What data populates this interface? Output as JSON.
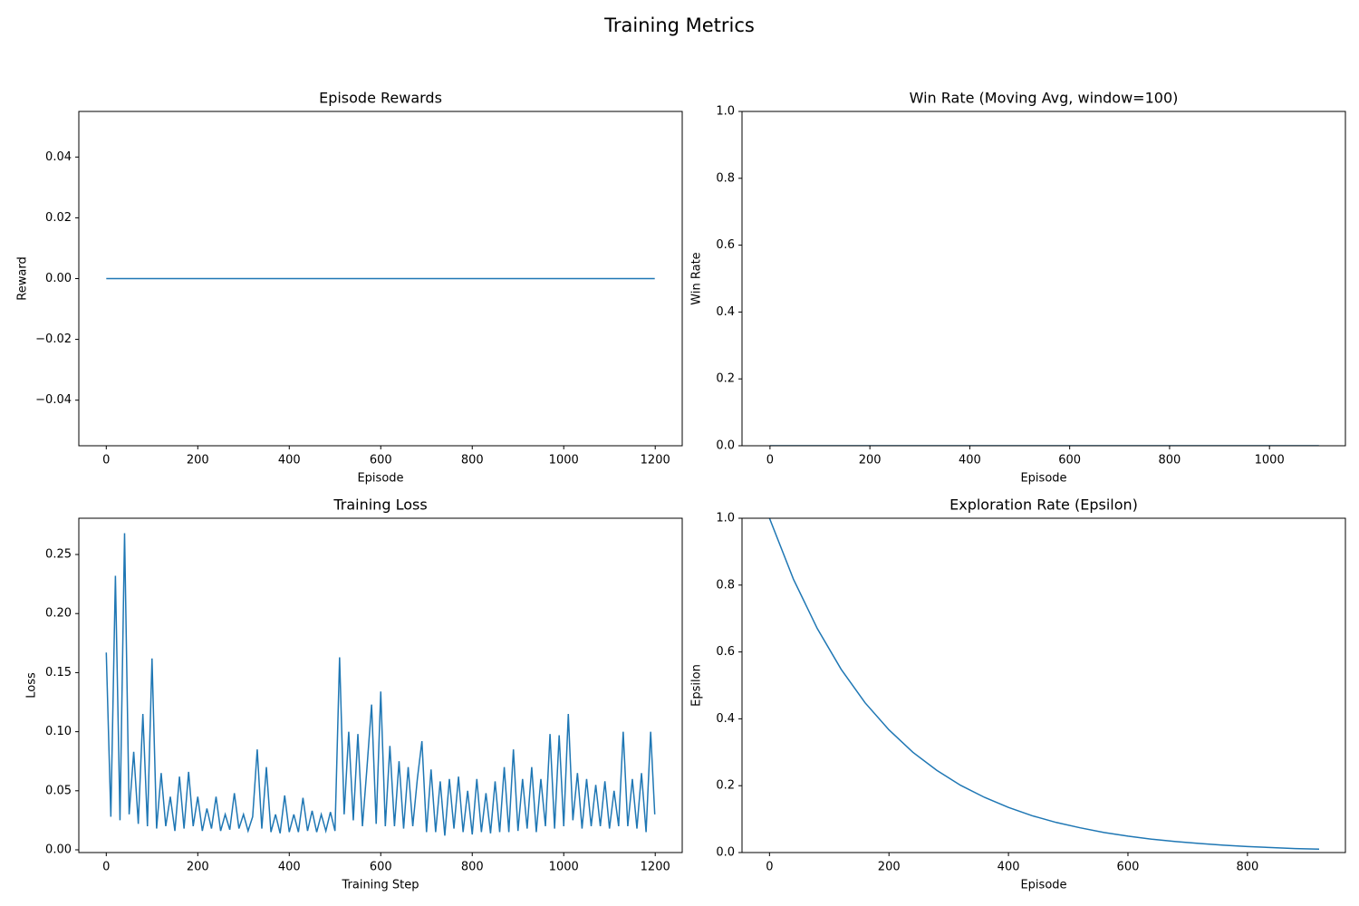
{
  "title": "Training Metrics",
  "chart_data": [
    {
      "type": "line",
      "title": "Episode Rewards",
      "xlabel": "Episode",
      "ylabel": "Reward",
      "x": [
        0,
        1199
      ],
      "series": [
        {
          "color": "#1f77b4",
          "values": [
            0,
            0
          ]
        }
      ],
      "xlim": [
        -60,
        1259
      ],
      "ylim": [
        -0.055,
        0.055
      ],
      "xticks": [
        0,
        200,
        400,
        600,
        800,
        1000,
        1200
      ],
      "yticks": [
        {
          "value": -0.04,
          "label": "−0.04"
        },
        {
          "value": -0.02,
          "label": "−0.02"
        },
        {
          "value": 0,
          "label": "0.00"
        },
        {
          "value": 0.02,
          "label": "0.02"
        },
        {
          "value": 0.04,
          "label": "0.04"
        }
      ]
    },
    {
      "type": "line",
      "title": "Win Rate (Moving Avg, window=100)",
      "xlabel": "Episode",
      "ylabel": "Win Rate",
      "x": [
        0,
        1099
      ],
      "series": [
        {
          "color": "#1f77b4",
          "values": [
            0,
            0
          ]
        }
      ],
      "xlim": [
        -56,
        1152
      ],
      "ylim": [
        0,
        1
      ],
      "xticks": [
        0,
        200,
        400,
        600,
        800,
        1000
      ],
      "yticks": [
        {
          "value": 0,
          "label": "0.0"
        },
        0.2,
        0.4,
        0.6,
        0.8,
        {
          "value": 1,
          "label": "1.0"
        }
      ]
    },
    {
      "type": "line",
      "title": "Training Loss",
      "xlabel": "Training Step",
      "ylabel": "Loss",
      "x": [
        0,
        10,
        20,
        30,
        40,
        50,
        60,
        70,
        80,
        90,
        100,
        110,
        120,
        130,
        140,
        150,
        160,
        170,
        180,
        190,
        200,
        210,
        220,
        230,
        240,
        250,
        260,
        270,
        280,
        290,
        300,
        310,
        320,
        330,
        340,
        350,
        360,
        370,
        380,
        390,
        400,
        410,
        420,
        430,
        440,
        450,
        460,
        470,
        480,
        490,
        500,
        510,
        520,
        530,
        540,
        550,
        560,
        570,
        580,
        590,
        600,
        610,
        620,
        630,
        640,
        650,
        660,
        670,
        680,
        690,
        700,
        710,
        720,
        730,
        740,
        750,
        760,
        770,
        780,
        790,
        800,
        810,
        820,
        830,
        840,
        850,
        860,
        870,
        880,
        890,
        900,
        910,
        920,
        930,
        940,
        950,
        960,
        970,
        980,
        990,
        1000,
        1010,
        1020,
        1030,
        1040,
        1050,
        1060,
        1070,
        1080,
        1090,
        1100,
        1110,
        1120,
        1130,
        1140,
        1150,
        1160,
        1170,
        1180,
        1190,
        1199
      ],
      "series": [
        {
          "color": "#1f77b4",
          "values": [
            0.167,
            0.028,
            0.232,
            0.025,
            0.268,
            0.03,
            0.083,
            0.022,
            0.115,
            0.02,
            0.162,
            0.018,
            0.065,
            0.02,
            0.045,
            0.016,
            0.062,
            0.018,
            0.066,
            0.02,
            0.045,
            0.016,
            0.035,
            0.018,
            0.045,
            0.016,
            0.03,
            0.017,
            0.048,
            0.018,
            0.03,
            0.016,
            0.028,
            0.085,
            0.018,
            0.07,
            0.015,
            0.03,
            0.014,
            0.046,
            0.015,
            0.03,
            0.015,
            0.044,
            0.016,
            0.033,
            0.015,
            0.03,
            0.016,
            0.032,
            0.016,
            0.163,
            0.03,
            0.1,
            0.025,
            0.098,
            0.02,
            0.07,
            0.123,
            0.022,
            0.134,
            0.02,
            0.088,
            0.02,
            0.075,
            0.018,
            0.07,
            0.02,
            0.06,
            0.092,
            0.015,
            0.068,
            0.015,
            0.058,
            0.012,
            0.06,
            0.018,
            0.062,
            0.015,
            0.05,
            0.013,
            0.06,
            0.015,
            0.048,
            0.014,
            0.058,
            0.015,
            0.07,
            0.015,
            0.085,
            0.016,
            0.06,
            0.018,
            0.07,
            0.015,
            0.06,
            0.02,
            0.098,
            0.018,
            0.097,
            0.02,
            0.115,
            0.025,
            0.065,
            0.018,
            0.06,
            0.02,
            0.055,
            0.02,
            0.058,
            0.018,
            0.05,
            0.02,
            0.1,
            0.02,
            0.06,
            0.018,
            0.065,
            0.015,
            0.1,
            0.03
          ]
        }
      ],
      "xlim": [
        -60,
        1259
      ],
      "ylim": [
        -0.0023,
        0.2807
      ],
      "xticks": [
        0,
        200,
        400,
        600,
        800,
        1000,
        1200
      ],
      "yticks": [
        {
          "value": 0,
          "label": "0.00"
        },
        0.05,
        {
          "value": 0.1,
          "label": "0.10"
        },
        0.15,
        {
          "value": 0.2,
          "label": "0.20"
        },
        0.25
      ]
    },
    {
      "type": "line",
      "title": "Exploration Rate (Epsilon)",
      "xlabel": "Episode",
      "ylabel": "Epsilon",
      "x": [
        0,
        40,
        80,
        120,
        160,
        200,
        240,
        280,
        320,
        360,
        400,
        440,
        480,
        520,
        560,
        600,
        640,
        680,
        720,
        760,
        800,
        840,
        880,
        920
      ],
      "series": [
        {
          "color": "#1f77b4",
          "values": [
            1,
            0.818,
            0.67,
            0.548,
            0.448,
            0.367,
            0.3,
            0.246,
            0.201,
            0.165,
            0.135,
            0.11,
            0.09,
            0.074,
            0.06,
            0.049,
            0.04,
            0.033,
            0.027,
            0.022,
            0.018,
            0.015,
            0.012,
            0.01
          ]
        }
      ],
      "xlim": [
        -46,
        964
      ],
      "ylim": [
        0,
        1
      ],
      "xticks": [
        0,
        200,
        400,
        600,
        800
      ],
      "yticks": [
        {
          "value": 0,
          "label": "0.0"
        },
        0.2,
        0.4,
        0.6,
        0.8,
        {
          "value": 1,
          "label": "1.0"
        }
      ]
    }
  ]
}
